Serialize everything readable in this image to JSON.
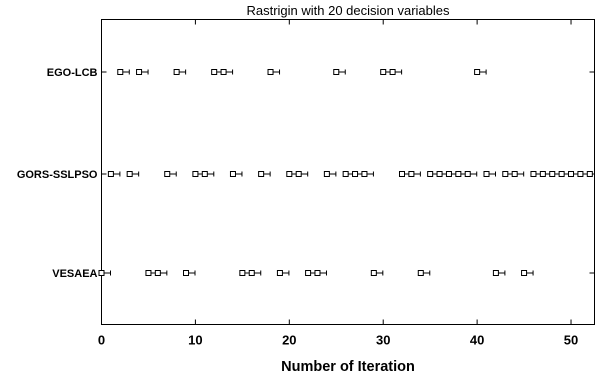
{
  "chart_data": {
    "type": "scatter",
    "title": "Rastrigin with 20 decision variables",
    "xlabel": "Number of Iteration",
    "ylabel": "",
    "xlim": [
      0,
      52.5
    ],
    "x_ticks": [
      "0",
      "10",
      "20",
      "30",
      "40",
      "50"
    ],
    "grid": false,
    "categories": [
      "VESAEA",
      "GORS-SSLPSO",
      "EGO-LCB"
    ],
    "series": [
      {
        "name": "EGO-LCB",
        "x": [
          2,
          4,
          8,
          12,
          13,
          18,
          25,
          30,
          31,
          40
        ]
      },
      {
        "name": "GORS-SSLPSO",
        "x": [
          1,
          3,
          7,
          10,
          11,
          14,
          17,
          20,
          21,
          24,
          26,
          27,
          28,
          32,
          33,
          35,
          36,
          37,
          38,
          39,
          41,
          43,
          44,
          46,
          47,
          48,
          49,
          50,
          51,
          52
        ]
      },
      {
        "name": "VESAEA",
        "x": [
          0,
          5,
          6,
          9,
          15,
          16,
          19,
          22,
          23,
          29,
          34,
          42,
          45
        ]
      }
    ]
  }
}
